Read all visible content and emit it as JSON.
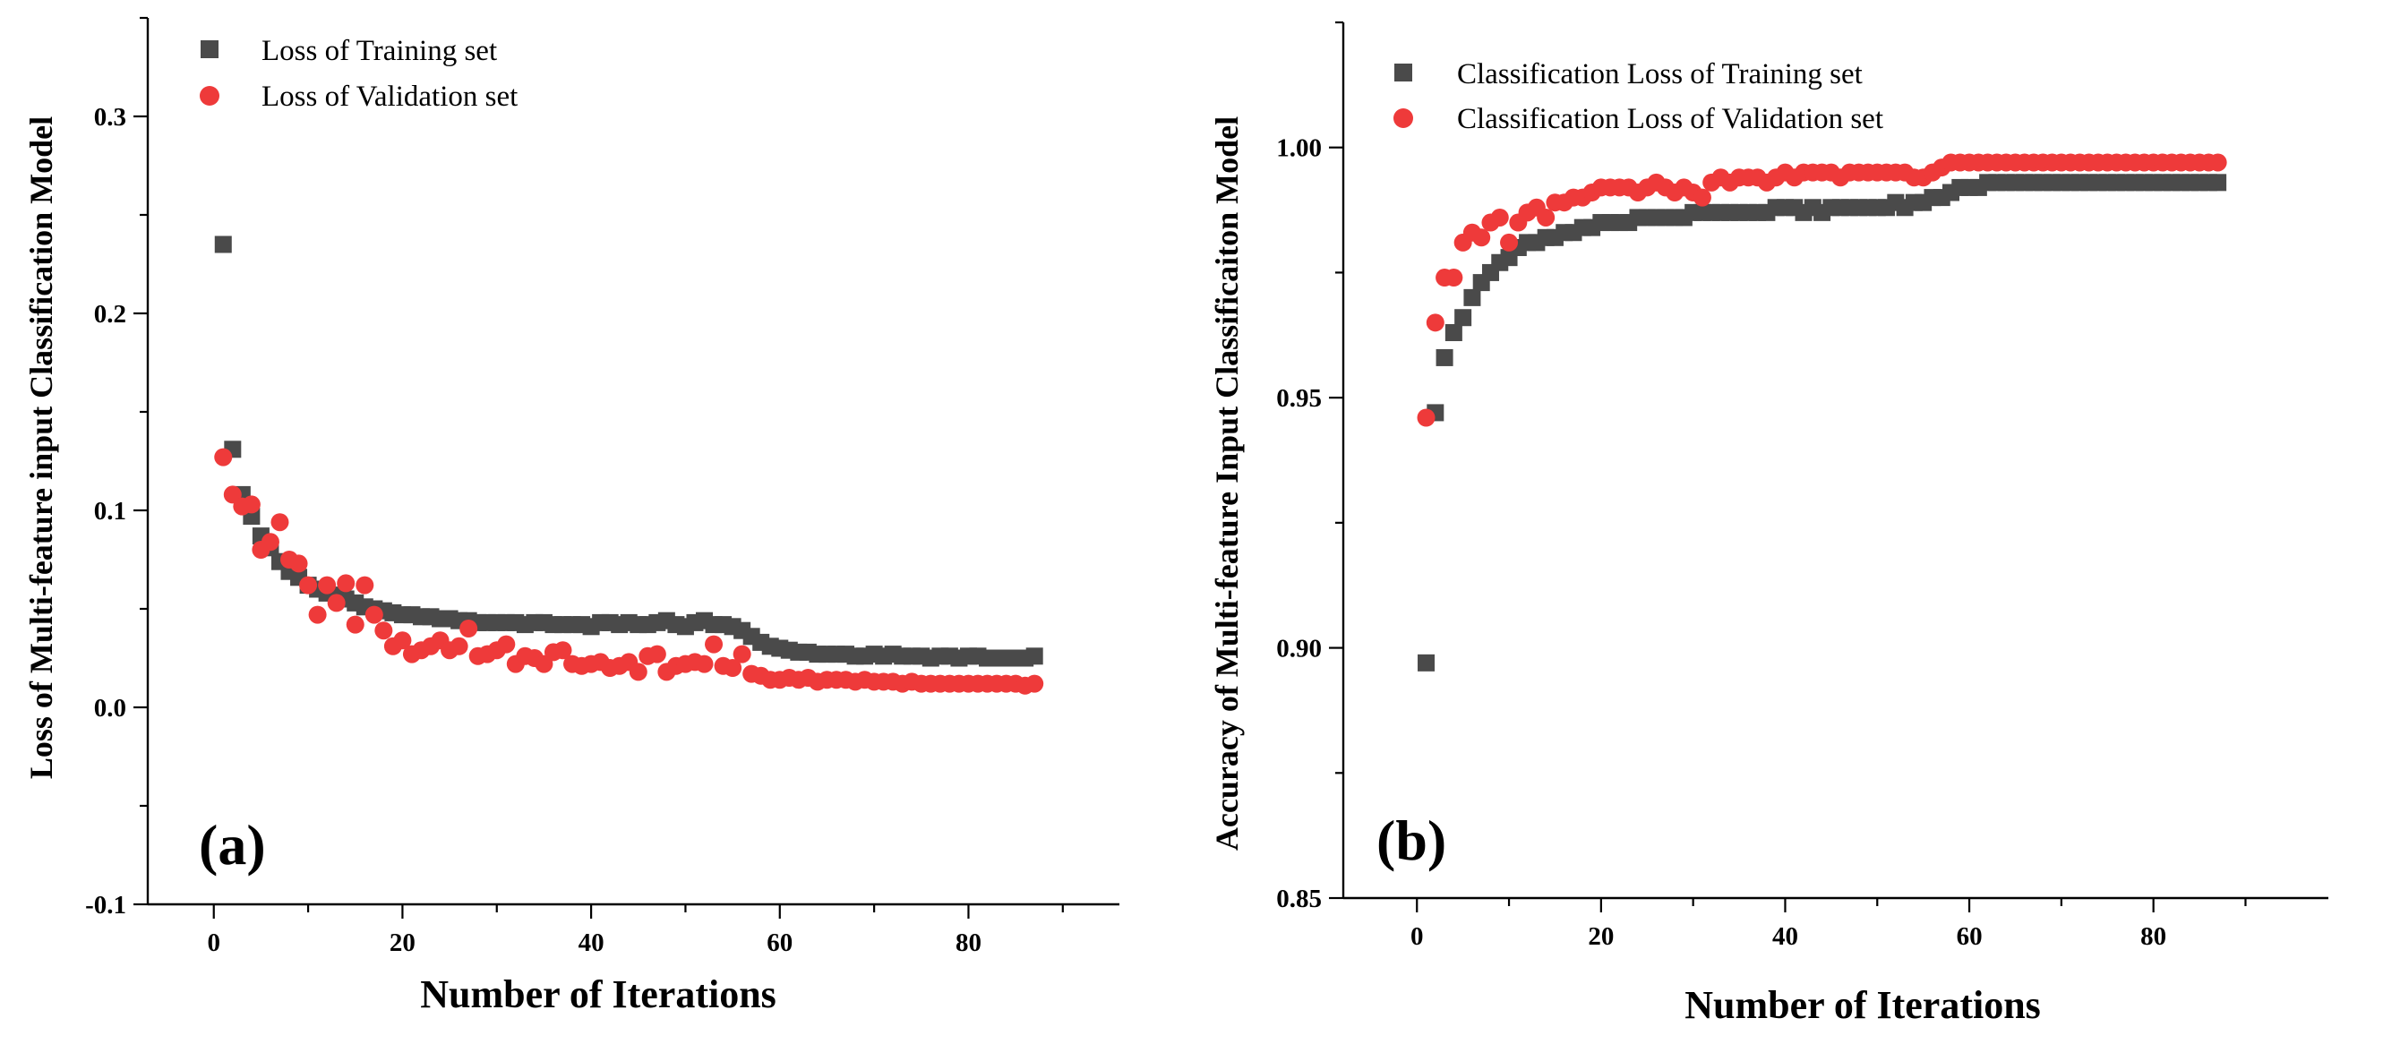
{
  "colors": {
    "training": "#4a4a4a",
    "validation": "#ee3a3a",
    "axis": "#000000"
  },
  "chart_data": [
    {
      "type": "scatter",
      "panel_label": "(a)",
      "xlabel": "Number of Iterations",
      "ylabel": "Loss of  Multi-feature input Classification Model",
      "xlim": [
        -7,
        96
      ],
      "ylim": [
        -0.1,
        0.35
      ],
      "xticks": [
        0,
        20,
        40,
        60,
        80
      ],
      "xtick_labels": [
        "0",
        "20",
        "40",
        "60",
        "80"
      ],
      "yticks": [
        -0.1,
        0.0,
        0.1,
        0.2,
        0.3
      ],
      "ytick_labels": [
        "-0.1",
        "0.0",
        "0.1",
        "0.2",
        "0.3"
      ],
      "legend_position": "top-left",
      "series": [
        {
          "name": "Loss of Training set",
          "marker": "square",
          "x": [
            1,
            2,
            3,
            4,
            5,
            6,
            7,
            8,
            9,
            10,
            11,
            12,
            13,
            14,
            15,
            16,
            17,
            18,
            19,
            20,
            21,
            22,
            23,
            24,
            25,
            26,
            27,
            28,
            29,
            30,
            31,
            32,
            33,
            34,
            35,
            36,
            37,
            38,
            39,
            40,
            41,
            42,
            43,
            44,
            45,
            46,
            47,
            48,
            49,
            50,
            51,
            52,
            53,
            54,
            55,
            56,
            57,
            58,
            59,
            60,
            61,
            62,
            63,
            64,
            65,
            66,
            67,
            68,
            69,
            70,
            71,
            72,
            73,
            74,
            75,
            76,
            77,
            78,
            79,
            80,
            81,
            82,
            83,
            84,
            85,
            86,
            87
          ],
          "y": [
            0.235,
            0.131,
            0.108,
            0.097,
            0.087,
            0.081,
            0.074,
            0.069,
            0.066,
            0.062,
            0.06,
            0.058,
            0.057,
            0.055,
            0.053,
            0.051,
            0.05,
            0.049,
            0.048,
            0.047,
            0.047,
            0.046,
            0.046,
            0.045,
            0.045,
            0.044,
            0.044,
            0.043,
            0.043,
            0.043,
            0.043,
            0.043,
            0.042,
            0.043,
            0.043,
            0.042,
            0.042,
            0.042,
            0.042,
            0.041,
            0.043,
            0.043,
            0.042,
            0.043,
            0.042,
            0.042,
            0.043,
            0.044,
            0.042,
            0.041,
            0.043,
            0.044,
            0.042,
            0.042,
            0.041,
            0.039,
            0.036,
            0.033,
            0.031,
            0.03,
            0.029,
            0.028,
            0.028,
            0.027,
            0.027,
            0.027,
            0.027,
            0.026,
            0.026,
            0.027,
            0.026,
            0.027,
            0.026,
            0.026,
            0.026,
            0.025,
            0.026,
            0.026,
            0.025,
            0.026,
            0.026,
            0.025,
            0.025,
            0.025,
            0.025,
            0.025,
            0.026
          ]
        },
        {
          "name": "Loss of Validation set",
          "marker": "circle",
          "x": [
            1,
            2,
            3,
            4,
            5,
            6,
            7,
            8,
            9,
            10,
            11,
            12,
            13,
            14,
            15,
            16,
            17,
            18,
            19,
            20,
            21,
            22,
            23,
            24,
            25,
            26,
            27,
            28,
            29,
            30,
            31,
            32,
            33,
            34,
            35,
            36,
            37,
            38,
            39,
            40,
            41,
            42,
            43,
            44,
            45,
            46,
            47,
            48,
            49,
            50,
            51,
            52,
            53,
            54,
            55,
            56,
            57,
            58,
            59,
            60,
            61,
            62,
            63,
            64,
            65,
            66,
            67,
            68,
            69,
            70,
            71,
            72,
            73,
            74,
            75,
            76,
            77,
            78,
            79,
            80,
            81,
            82,
            83,
            84,
            85,
            86,
            87
          ],
          "y": [
            0.127,
            0.108,
            0.102,
            0.103,
            0.08,
            0.084,
            0.094,
            0.075,
            0.073,
            0.062,
            0.047,
            0.062,
            0.053,
            0.063,
            0.042,
            0.062,
            0.047,
            0.039,
            0.031,
            0.034,
            0.027,
            0.029,
            0.031,
            0.034,
            0.029,
            0.031,
            0.04,
            0.026,
            0.027,
            0.029,
            0.032,
            0.022,
            0.026,
            0.025,
            0.022,
            0.028,
            0.029,
            0.022,
            0.021,
            0.022,
            0.023,
            0.02,
            0.021,
            0.023,
            0.018,
            0.026,
            0.027,
            0.018,
            0.021,
            0.022,
            0.023,
            0.022,
            0.032,
            0.021,
            0.02,
            0.027,
            0.017,
            0.016,
            0.014,
            0.014,
            0.015,
            0.014,
            0.015,
            0.013,
            0.014,
            0.014,
            0.014,
            0.013,
            0.014,
            0.013,
            0.013,
            0.013,
            0.012,
            0.013,
            0.012,
            0.012,
            0.012,
            0.012,
            0.012,
            0.012,
            0.012,
            0.012,
            0.012,
            0.012,
            0.012,
            0.011,
            0.012
          ]
        }
      ]
    },
    {
      "type": "scatter",
      "panel_label": "(b)",
      "xlabel": "Number of Iterations",
      "ylabel": "Accuracy of Multi-feature Input Classificaiton Model",
      "xlim": [
        -8,
        99
      ],
      "ylim": [
        0.85,
        1.025
      ],
      "xticks": [
        0,
        20,
        40,
        60,
        80
      ],
      "xtick_labels": [
        "0",
        "20",
        "40",
        "60",
        "80"
      ],
      "yticks": [
        0.85,
        0.9,
        0.95,
        1.0
      ],
      "ytick_labels": [
        "0.85",
        "0.90",
        "0.95",
        "1.00"
      ],
      "legend_position": "top-left",
      "series": [
        {
          "name": "Classification Loss of Training set",
          "marker": "square",
          "x": [
            1,
            2,
            3,
            4,
            5,
            6,
            7,
            8,
            9,
            10,
            11,
            12,
            13,
            14,
            15,
            16,
            17,
            18,
            19,
            20,
            21,
            22,
            23,
            24,
            25,
            26,
            27,
            28,
            29,
            30,
            31,
            32,
            33,
            34,
            35,
            36,
            37,
            38,
            39,
            40,
            41,
            42,
            43,
            44,
            45,
            46,
            47,
            48,
            49,
            50,
            51,
            52,
            53,
            54,
            55,
            56,
            57,
            58,
            59,
            60,
            61,
            62,
            63,
            64,
            65,
            66,
            67,
            68,
            69,
            70,
            71,
            72,
            73,
            74,
            75,
            76,
            77,
            78,
            79,
            80,
            81,
            82,
            83,
            84,
            85,
            86,
            87
          ],
          "y": [
            0.897,
            0.947,
            0.958,
            0.963,
            0.966,
            0.97,
            0.973,
            0.975,
            0.977,
            0.978,
            0.98,
            0.981,
            0.981,
            0.982,
            0.982,
            0.983,
            0.983,
            0.984,
            0.984,
            0.985,
            0.985,
            0.985,
            0.985,
            0.986,
            0.986,
            0.986,
            0.986,
            0.986,
            0.986,
            0.987,
            0.987,
            0.987,
            0.987,
            0.987,
            0.987,
            0.987,
            0.987,
            0.987,
            0.988,
            0.988,
            0.988,
            0.987,
            0.988,
            0.987,
            0.988,
            0.988,
            0.988,
            0.988,
            0.988,
            0.988,
            0.988,
            0.989,
            0.988,
            0.989,
            0.989,
            0.99,
            0.99,
            0.991,
            0.992,
            0.992,
            0.992,
            0.993,
            0.993,
            0.993,
            0.993,
            0.993,
            0.993,
            0.993,
            0.993,
            0.993,
            0.993,
            0.993,
            0.993,
            0.993,
            0.993,
            0.993,
            0.993,
            0.993,
            0.993,
            0.993,
            0.993,
            0.993,
            0.993,
            0.993,
            0.993,
            0.993,
            0.993
          ]
        },
        {
          "name": "Classification Loss of Validation set",
          "marker": "circle",
          "x": [
            1,
            2,
            3,
            4,
            5,
            6,
            7,
            8,
            9,
            10,
            11,
            12,
            13,
            14,
            15,
            16,
            17,
            18,
            19,
            20,
            21,
            22,
            23,
            24,
            25,
            26,
            27,
            28,
            29,
            30,
            31,
            32,
            33,
            34,
            35,
            36,
            37,
            38,
            39,
            40,
            41,
            42,
            43,
            44,
            45,
            46,
            47,
            48,
            49,
            50,
            51,
            52,
            53,
            54,
            55,
            56,
            57,
            58,
            59,
            60,
            61,
            62,
            63,
            64,
            65,
            66,
            67,
            68,
            69,
            70,
            71,
            72,
            73,
            74,
            75,
            76,
            77,
            78,
            79,
            80,
            81,
            82,
            83,
            84,
            85,
            86,
            87
          ],
          "y": [
            0.946,
            0.965,
            0.974,
            0.974,
            0.981,
            0.983,
            0.982,
            0.985,
            0.986,
            0.981,
            0.985,
            0.987,
            0.988,
            0.986,
            0.989,
            0.989,
            0.99,
            0.99,
            0.991,
            0.992,
            0.992,
            0.992,
            0.992,
            0.991,
            0.992,
            0.993,
            0.992,
            0.991,
            0.992,
            0.991,
            0.99,
            0.993,
            0.994,
            0.993,
            0.994,
            0.994,
            0.994,
            0.993,
            0.994,
            0.995,
            0.994,
            0.995,
            0.995,
            0.995,
            0.995,
            0.994,
            0.995,
            0.995,
            0.995,
            0.995,
            0.995,
            0.995,
            0.995,
            0.994,
            0.994,
            0.995,
            0.996,
            0.997,
            0.997,
            0.997,
            0.997,
            0.997,
            0.997,
            0.997,
            0.997,
            0.997,
            0.997,
            0.997,
            0.997,
            0.997,
            0.997,
            0.997,
            0.997,
            0.997,
            0.997,
            0.997,
            0.997,
            0.997,
            0.997,
            0.997,
            0.997,
            0.997,
            0.997,
            0.997,
            0.997,
            0.997,
            0.997
          ]
        }
      ]
    }
  ]
}
